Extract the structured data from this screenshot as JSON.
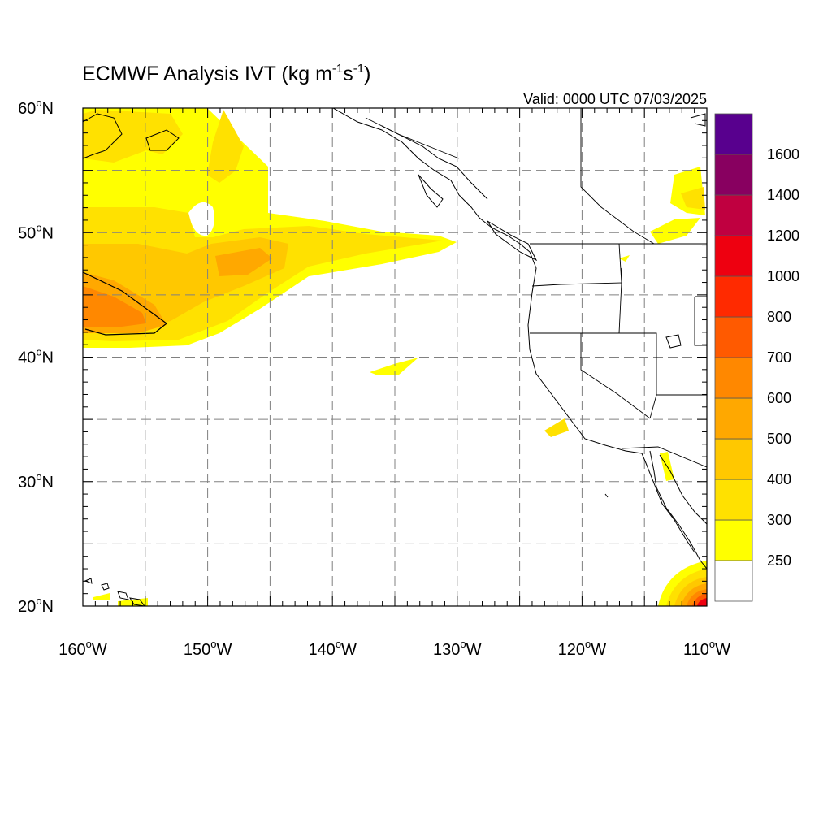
{
  "title": {
    "main": "ECMWF Analysis IVT (kg m",
    "sup1": "-1",
    "mid": "s",
    "sup2": "-1",
    "close": ")"
  },
  "valid_time": "Valid: 0000 UTC 07/03/2025",
  "map": {
    "lon_range": [
      -160,
      -110
    ],
    "lat_range": [
      20,
      60
    ],
    "gridlines": "dashed",
    "lat_labels": [
      {
        "deg": "20",
        "hemi": "N"
      },
      {
        "deg": "30",
        "hemi": "N"
      },
      {
        "deg": "40",
        "hemi": "N"
      },
      {
        "deg": "50",
        "hemi": "N"
      },
      {
        "deg": "60",
        "hemi": "N"
      }
    ],
    "lon_labels": [
      {
        "deg": "160",
        "hemi": "W"
      },
      {
        "deg": "150",
        "hemi": "W"
      },
      {
        "deg": "140",
        "hemi": "W"
      },
      {
        "deg": "130",
        "hemi": "W"
      },
      {
        "deg": "120",
        "hemi": "W"
      },
      {
        "deg": "110",
        "hemi": "W"
      }
    ]
  },
  "colorbar": {
    "levels": [
      "250",
      "300",
      "400",
      "500",
      "600",
      "700",
      "800",
      "1000",
      "1200",
      "1400",
      "1600"
    ],
    "colors": [
      "#ffffff",
      "#ffff00",
      "#ffe100",
      "#ffc800",
      "#ffa800",
      "#ff8800",
      "#ff5a00",
      "#ff2a00",
      "#ee0010",
      "#c00040",
      "#880060",
      "#58008e"
    ]
  }
}
